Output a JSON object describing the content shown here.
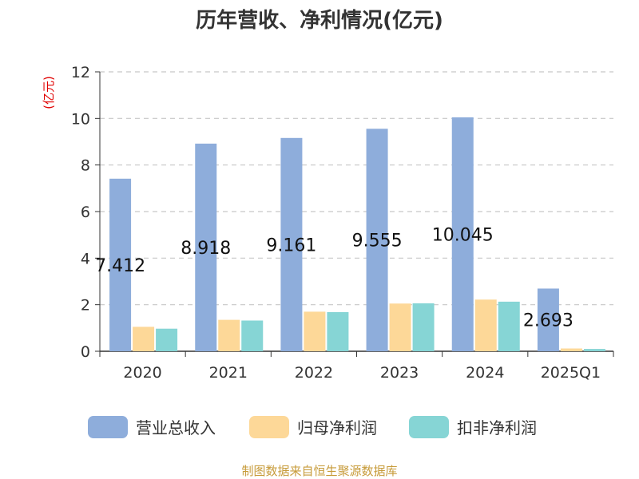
{
  "title": "历年营收、净利情况(亿元)",
  "unit_label": "(亿元)",
  "source": "制图数据来自恒生聚源数据库",
  "colors": {
    "revenue": "#8eaddb",
    "net_profit": "#fdd898",
    "deducted_profit": "#86d5d5"
  },
  "chart_data": {
    "type": "bar",
    "title": "历年营收、净利情况(亿元)",
    "ylabel": "(亿元)",
    "xlabel": "",
    "ylim": [
      0,
      12
    ],
    "yticks": [
      0,
      2,
      4,
      6,
      8,
      10,
      12
    ],
    "grid": true,
    "legend": "bottom",
    "categories": [
      "2020",
      "2021",
      "2022",
      "2023",
      "2024",
      "2025Q1"
    ],
    "series": [
      {
        "name": "营业总收入",
        "values": [
          7.412,
          8.918,
          9.161,
          9.555,
          10.045,
          2.693
        ]
      },
      {
        "name": "归母净利润",
        "values": [
          1.05,
          1.35,
          1.7,
          2.05,
          2.22,
          0.12
        ]
      },
      {
        "name": "扣非净利润",
        "values": [
          0.97,
          1.32,
          1.68,
          2.06,
          2.13,
          0.1
        ]
      }
    ],
    "data_labels": [
      "7.412",
      "8.918",
      "9.161",
      "9.555",
      "10.045",
      "2.693"
    ]
  }
}
